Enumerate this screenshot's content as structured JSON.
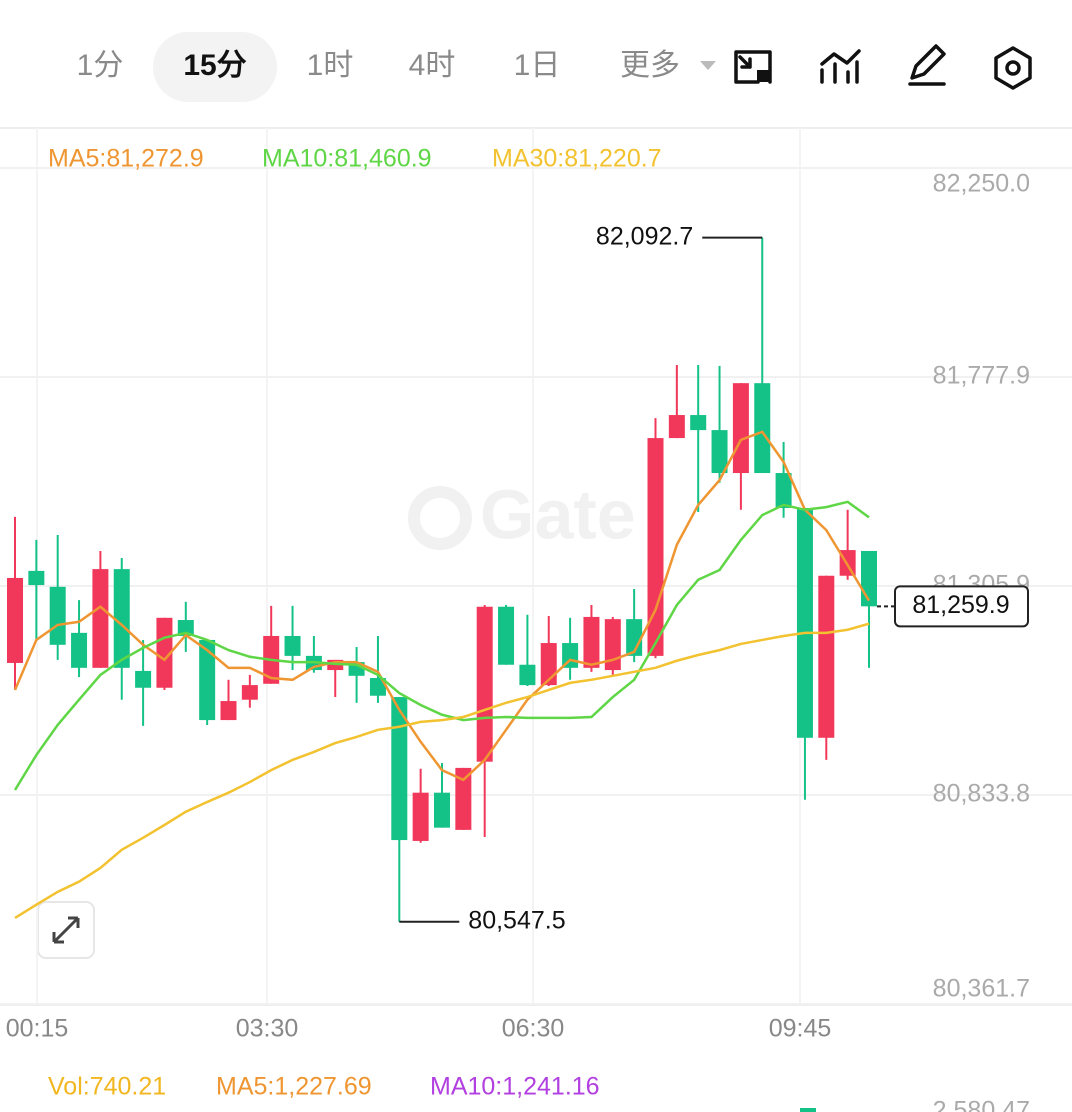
{
  "toolbar": {
    "intervals": [
      "1分",
      "15分",
      "1时",
      "4时",
      "1日"
    ],
    "active": 1,
    "more": "更多"
  },
  "watermark": "Gate",
  "chart_data": {
    "type": "candlestick",
    "up_color": "#f2385a",
    "down_color": "#14c287",
    "ylim": [
      80361.7,
      82250.0
    ],
    "yticks": [
      {
        "value": 82250.0,
        "label": "82,250.0"
      },
      {
        "value": 81777.9,
        "label": "81,777.9"
      },
      {
        "value": 81305.9,
        "label": "81,305.9"
      },
      {
        "value": 80833.8,
        "label": "80,833.8"
      },
      {
        "value": 80361.7,
        "label": "80,361.7"
      }
    ],
    "xtick_labels": [
      "00:15",
      "03:30",
      "06:30",
      "09:45"
    ],
    "open": [
      81132,
      81340,
      81304,
      81200,
      81121,
      81344,
      81114,
      81076,
      81229,
      81184,
      81003,
      81049,
      81085,
      81193,
      81148,
      81116,
      81134,
      81098,
      81055,
      80730,
      80839,
      80755,
      80909,
      81259,
      81128,
      81082,
      81177,
      81121,
      81116,
      81231,
      81148,
      81640,
      81692,
      81658,
      81561,
      81764,
      81561,
      81482,
      80963,
      81329,
      81385
    ],
    "high": [
      81462,
      81410,
      81421,
      81274,
      81385,
      81369,
      81184,
      81234,
      81270,
      81184,
      81094,
      81105,
      81261,
      81261,
      81193,
      81139,
      81168,
      81193,
      81055,
      80893,
      80906,
      80895,
      81263,
      81263,
      81241,
      81238,
      81234,
      81263,
      81236,
      81299,
      81685,
      81805,
      81805,
      81803,
      81764,
      82092.7,
      81631,
      81482,
      81329,
      81478,
      81385
    ],
    "low": [
      81071,
      81184,
      81139,
      81100,
      81121,
      81049,
      80990,
      81071,
      81157,
      80992,
      81003,
      81031,
      81085,
      81116,
      81110,
      81055,
      81042,
      81042,
      80547.5,
      80726,
      80760,
      80755,
      80739,
      81128,
      81080,
      81080,
      81094,
      81112,
      81105,
      81134,
      81143,
      81640,
      81473,
      81539,
      81478,
      81561,
      81460,
      80823,
      80913,
      81320,
      81121
    ],
    "close": [
      81324,
      81308,
      81173,
      81121,
      81344,
      81121,
      81076,
      81234,
      81193,
      81003,
      81046,
      81082,
      81193,
      81148,
      81116,
      81139,
      81103,
      81058,
      80732,
      80839,
      80760,
      80895,
      81259,
      81128,
      81082,
      81177,
      81121,
      81236,
      81231,
      81148,
      81640,
      81692,
      81658,
      81561,
      81764,
      81561,
      81482,
      80963,
      81329,
      81387,
      81259.9
    ],
    "series": [
      {
        "name": "MA5:81,272.9",
        "color": "#ef9632",
        "values": [
          81071,
          81184,
          81218,
          81225,
          81259,
          81218,
          81173,
          81139,
          81195,
          81161,
          81121,
          81121,
          81098,
          81094,
          81123,
          81134,
          81134,
          81112,
          81026,
          80954,
          80890,
          80868,
          80913,
          80981,
          81049,
          81094,
          81139,
          81128,
          81139,
          81157,
          81252,
          81399,
          81489,
          81545,
          81636,
          81654,
          81586,
          81478,
          81432,
          81353,
          81272.9
        ]
      },
      {
        "name": "MA10:81,460.9",
        "color": "#5fd646",
        "values": [
          80845,
          80924,
          80992,
          81049,
          81105,
          81139,
          81166,
          81189,
          81200,
          81184,
          81161,
          81146,
          81139,
          81134,
          81134,
          81130,
          81128,
          81105,
          81064,
          81037,
          81015,
          81003,
          81008,
          81010,
          81008,
          81008,
          81008,
          81010,
          81055,
          81094,
          81177,
          81263,
          81320,
          81342,
          81410,
          81466,
          81489,
          81478,
          81484,
          81496,
          81460.9
        ]
      },
      {
        "name": "MA30:81,220.7",
        "color": "#f2c230",
        "values": [
          80556,
          80586,
          80615,
          80638,
          80669,
          80710,
          80737,
          80766,
          80796,
          80818,
          80839,
          80863,
          80890,
          80913,
          80931,
          80951,
          80965,
          80981,
          80988,
          80999,
          81003,
          81010,
          81026,
          81042,
          81055,
          81071,
          81087,
          81094,
          81103,
          81112,
          81121,
          81137,
          81150,
          81161,
          81175,
          81184,
          81193,
          81200,
          81200,
          81207,
          81220.7
        ]
      }
    ],
    "annotations": [
      {
        "value": 82092.7,
        "label": "82,092.7"
      },
      {
        "value": 80547.5,
        "label": "80,547.5"
      }
    ],
    "last_price": {
      "value": 81259.9,
      "label": "81,259.9"
    }
  },
  "volume": {
    "legend": [
      {
        "text": "Vol:740.21",
        "color": "#f2b620"
      },
      {
        "text": "MA5:1,227.69",
        "color": "#ef9632"
      },
      {
        "text": "MA10:1,241.16",
        "color": "#b23fe0"
      }
    ],
    "ytick": {
      "value": 2580.47,
      "label": "2,580.47"
    }
  }
}
